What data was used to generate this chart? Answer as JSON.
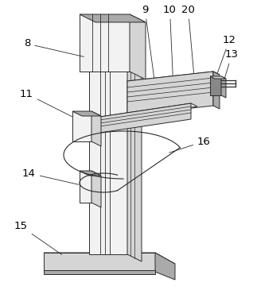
{
  "background_color": "#ffffff",
  "line_color": "#2a2a2a",
  "fill_light": "#f2f2f2",
  "fill_mid": "#d5d5d5",
  "fill_dark": "#aaaaaa",
  "fill_darker": "#888888",
  "label_fontsize": 9.5,
  "figsize": [
    3.18,
    3.75
  ],
  "dpi": 100
}
